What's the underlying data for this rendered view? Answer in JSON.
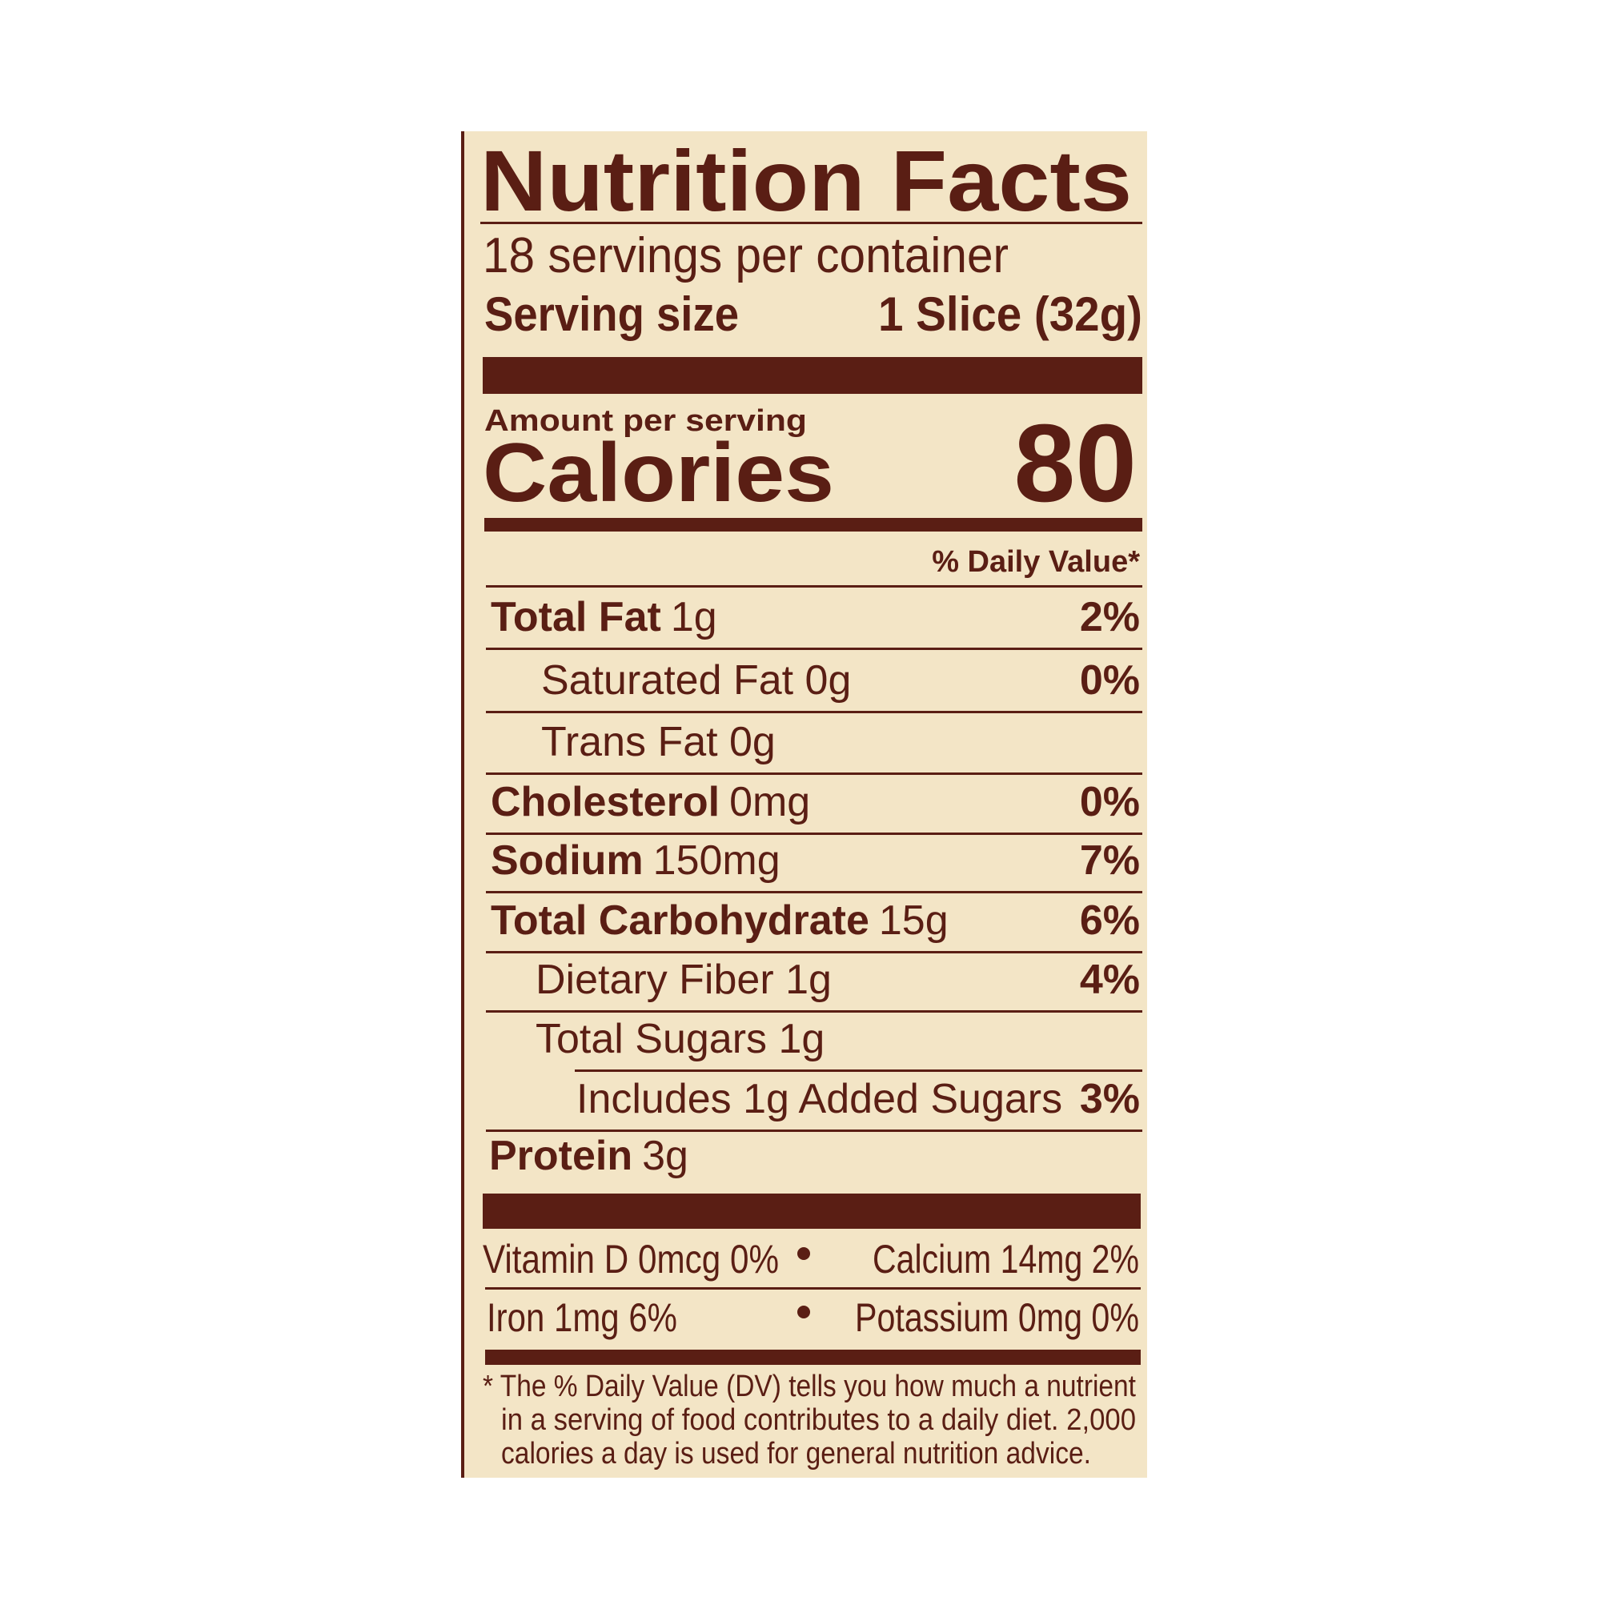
{
  "title": "Nutrition Facts",
  "servings": "18 servings per container",
  "serving_size": {
    "label": "Serving size",
    "value": "1 Slice (32g)"
  },
  "amount_per_serving": "Amount per serving",
  "calories": {
    "label": "Calories",
    "value": "80"
  },
  "dv_header": "% Daily Value*",
  "nutrients": [
    {
      "name": "Total Fat",
      "amount": "1g",
      "dv": "2%"
    },
    {
      "name": "Saturated Fat 0g",
      "dv": "0%"
    },
    {
      "name": "Trans Fat 0g"
    },
    {
      "name": "Cholesterol",
      "amount": "0mg",
      "dv": "0%"
    },
    {
      "name": "Sodium",
      "amount": "150mg",
      "dv": "7%"
    },
    {
      "name": "Total Carbohydrate",
      "amount": "15g",
      "dv": "6%"
    },
    {
      "name": "Dietary Fiber 1g",
      "dv": "4%"
    },
    {
      "name": "Total Sugars 1g"
    },
    {
      "name": "Includes 1g Added Sugars",
      "dv": "3%"
    },
    {
      "name": "Protein",
      "amount": "3g"
    }
  ],
  "vitamins": [
    [
      "Vitamin D 0mcg 0%",
      "Calcium 14mg 2%"
    ],
    [
      "Iron 1mg 6%",
      "Potassium 0mg 0%"
    ]
  ],
  "footnote": [
    "* The % Daily Value (DV) tells you how much a nutrient",
    "in a serving of food contributes to a daily diet. 2,000",
    "calories a day is used for general nutrition advice."
  ]
}
